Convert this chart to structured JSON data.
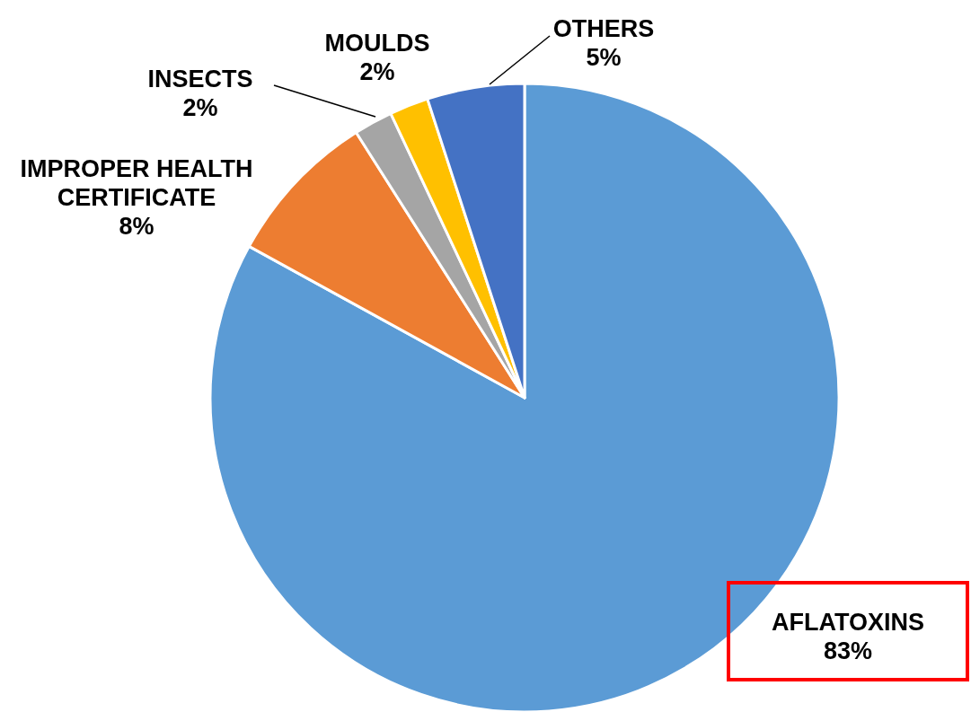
{
  "chart_data": {
    "type": "pie",
    "categories": [
      "AFLATOXINS",
      "IMPROPER HEALTH CERTIFICATE",
      "INSECTS",
      "MOULDS",
      "OTHERS"
    ],
    "values": [
      83,
      8,
      2,
      2,
      5
    ],
    "value_labels": [
      "83%",
      "8%",
      "2%",
      "2%",
      "5%"
    ],
    "colors": [
      "#5b9bd5",
      "#ed7d31",
      "#a5a5a5",
      "#ffc000",
      "#4472c4"
    ]
  }
}
